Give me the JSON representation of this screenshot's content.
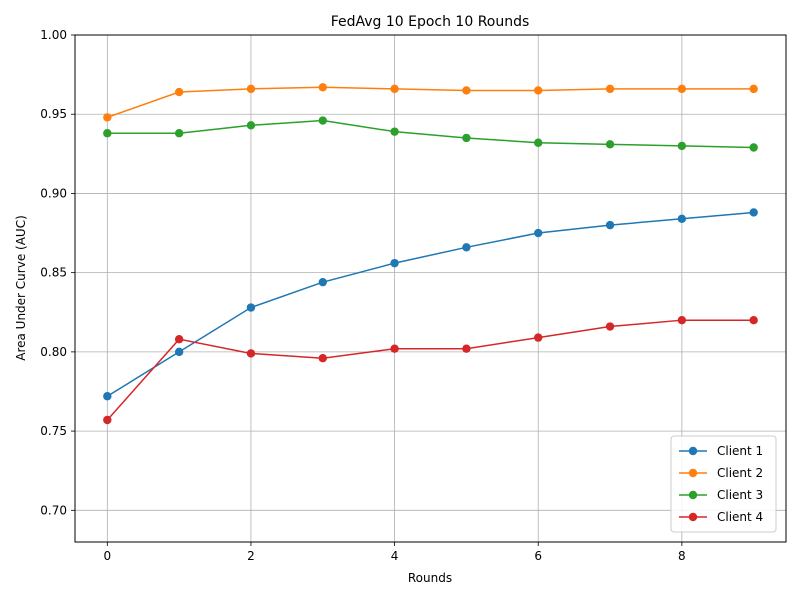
{
  "chart_data": {
    "type": "line",
    "title": "FedAvg 10 Epoch 10 Rounds",
    "xlabel": "Rounds",
    "ylabel": "Area Under Curve (AUC)",
    "x": [
      0,
      1,
      2,
      3,
      4,
      5,
      6,
      7,
      8,
      9
    ],
    "xlim": [
      -0.45,
      9.45
    ],
    "ylim": [
      0.68,
      1.0
    ],
    "xticks": [
      0,
      2,
      4,
      6,
      8
    ],
    "yticks": [
      0.7,
      0.75,
      0.8,
      0.85,
      0.9,
      0.95,
      1.0
    ],
    "xtick_labels": [
      "0",
      "2",
      "4",
      "6",
      "8"
    ],
    "ytick_labels": [
      "0.70",
      "0.75",
      "0.80",
      "0.85",
      "0.90",
      "0.95",
      "1.00"
    ],
    "grid": true,
    "legend_position": "bottom-right",
    "series": [
      {
        "name": "Client 1",
        "color": "#1f77b4",
        "values": [
          0.772,
          0.8,
          0.828,
          0.844,
          0.856,
          0.866,
          0.875,
          0.88,
          0.884,
          0.888
        ]
      },
      {
        "name": "Client 2",
        "color": "#ff7f0e",
        "values": [
          0.948,
          0.964,
          0.966,
          0.967,
          0.966,
          0.965,
          0.965,
          0.966,
          0.966,
          0.966
        ]
      },
      {
        "name": "Client 3",
        "color": "#2ca02c",
        "values": [
          0.938,
          0.938,
          0.943,
          0.946,
          0.939,
          0.935,
          0.932,
          0.931,
          0.93,
          0.929
        ]
      },
      {
        "name": "Client 4",
        "color": "#d62728",
        "values": [
          0.757,
          0.808,
          0.799,
          0.796,
          0.802,
          0.802,
          0.809,
          0.816,
          0.82,
          0.82
        ]
      }
    ]
  }
}
